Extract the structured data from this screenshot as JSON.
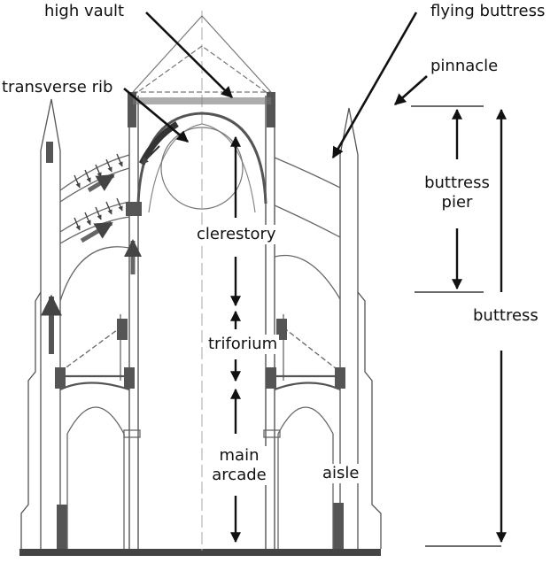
{
  "labels": {
    "high_vault": "high vault",
    "flying_buttress": "flying buttress",
    "transverse_rib": "transverse rib",
    "pinnacle": "pinnacle",
    "buttress_pier_line1": "buttress",
    "buttress_pier_line2": "pier",
    "clerestory": "clerestory",
    "triforium": "triforium",
    "main_arcade_line1": "main",
    "main_arcade_line2": "arcade",
    "aisle": "aisle",
    "buttress": "buttress"
  },
  "colors": {
    "ink": "#111111",
    "sketch": "#555555",
    "light": "#9a9a9a",
    "shade": "#444444"
  }
}
